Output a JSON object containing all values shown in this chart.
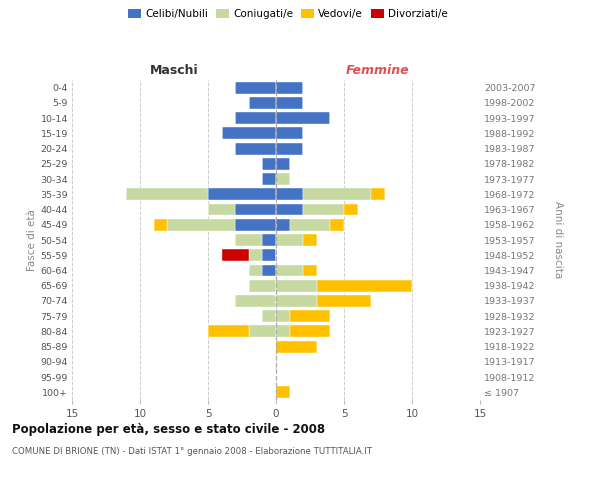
{
  "age_groups": [
    "100+",
    "95-99",
    "90-94",
    "85-89",
    "80-84",
    "75-79",
    "70-74",
    "65-69",
    "60-64",
    "55-59",
    "50-54",
    "45-49",
    "40-44",
    "35-39",
    "30-34",
    "25-29",
    "20-24",
    "15-19",
    "10-14",
    "5-9",
    "0-4"
  ],
  "birth_years": [
    "≤ 1907",
    "1908-1912",
    "1913-1917",
    "1918-1922",
    "1923-1927",
    "1928-1932",
    "1933-1937",
    "1938-1942",
    "1943-1947",
    "1948-1952",
    "1953-1957",
    "1958-1962",
    "1963-1967",
    "1968-1972",
    "1973-1977",
    "1978-1982",
    "1983-1987",
    "1988-1992",
    "1993-1997",
    "1998-2002",
    "2003-2007"
  ],
  "colors": {
    "celibi": "#4472c4",
    "coniugati": "#c5d9a0",
    "vedovi": "#ffc000",
    "divorziati": "#cc0000"
  },
  "males": {
    "celibi": [
      0,
      0,
      0,
      0,
      0,
      0,
      0,
      0,
      1,
      1,
      1,
      3,
      3,
      5,
      1,
      1,
      3,
      4,
      3,
      2,
      3
    ],
    "coniugati": [
      0,
      0,
      0,
      0,
      2,
      1,
      3,
      2,
      1,
      1,
      2,
      5,
      2,
      6,
      0,
      0,
      0,
      0,
      0,
      0,
      0
    ],
    "vedovi": [
      0,
      0,
      0,
      0,
      3,
      0,
      0,
      0,
      0,
      0,
      0,
      1,
      0,
      0,
      0,
      0,
      0,
      0,
      0,
      0,
      0
    ],
    "divorziati": [
      0,
      0,
      0,
      0,
      0,
      0,
      0,
      0,
      0,
      2,
      0,
      0,
      0,
      0,
      0,
      0,
      0,
      0,
      0,
      0,
      0
    ]
  },
  "females": {
    "nubili": [
      0,
      0,
      0,
      0,
      0,
      0,
      0,
      0,
      0,
      0,
      0,
      1,
      2,
      2,
      0,
      1,
      2,
      2,
      4,
      2,
      2
    ],
    "coniugate": [
      0,
      0,
      0,
      0,
      1,
      1,
      3,
      3,
      2,
      0,
      2,
      3,
      3,
      5,
      1,
      0,
      0,
      0,
      0,
      0,
      0
    ],
    "vedove": [
      1,
      0,
      0,
      3,
      3,
      3,
      4,
      7,
      1,
      0,
      1,
      1,
      1,
      1,
      0,
      0,
      0,
      0,
      0,
      0,
      0
    ],
    "divorziate": [
      0,
      0,
      0,
      0,
      0,
      0,
      0,
      0,
      0,
      0,
      0,
      0,
      0,
      0,
      0,
      0,
      0,
      0,
      0,
      0,
      0
    ]
  },
  "xlim": [
    -15,
    15
  ],
  "xticks": [
    -15,
    -10,
    -5,
    0,
    5,
    10,
    15
  ],
  "xticklabels": [
    "15",
    "10",
    "5",
    "0",
    "5",
    "10",
    "15"
  ],
  "title": "Popolazione per età, sesso e stato civile - 2008",
  "subtitle": "COMUNE DI BRIONE (TN) - Dati ISTAT 1° gennaio 2008 - Elaborazione TUTTITALIA.IT",
  "ylabel_left": "Fasce di età",
  "ylabel_right": "Anni di nascita",
  "maschi_label": "Maschi",
  "femmine_label": "Femmine",
  "bg_color": "#ffffff",
  "grid_color": "#cccccc",
  "legend_labels": [
    "Celibi/Nubili",
    "Coniugati/e",
    "Vedovi/e",
    "Divorziati/e"
  ]
}
